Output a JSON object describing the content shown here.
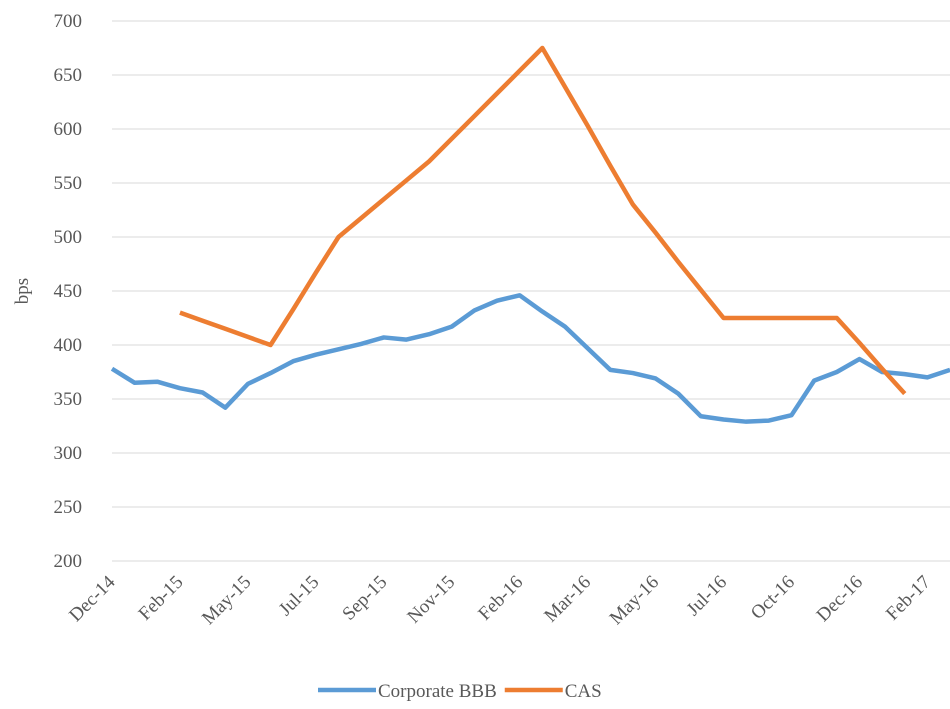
{
  "chart_data": {
    "type": "line",
    "y_label": "bps",
    "categories": [
      "Dec-14",
      null,
      null,
      "Feb-15",
      null,
      null,
      "May-15",
      null,
      null,
      "Jul-15",
      null,
      null,
      "Sep-15",
      null,
      null,
      "Nov-15",
      null,
      null,
      "Feb-16",
      null,
      null,
      "Mar-16",
      null,
      null,
      "May-16",
      null,
      null,
      "Jul-16",
      null,
      null,
      "Oct-16",
      null,
      null,
      "Dec-16",
      null,
      null,
      "Feb-17",
      null
    ],
    "series": [
      {
        "name": "Corporate BBB",
        "color": "#5b9bd5",
        "values": [
          378,
          365,
          366,
          360,
          356,
          342,
          364,
          374,
          385,
          391,
          396,
          401,
          407,
          405,
          410,
          417,
          432,
          441,
          446,
          431,
          417,
          397,
          377,
          374,
          369,
          355,
          334,
          331,
          329,
          330,
          335,
          367,
          375,
          387,
          375,
          373,
          370,
          377
        ]
      },
      {
        "name": "CAS",
        "color": "#ed7d31",
        "values": [
          null,
          null,
          null,
          430,
          422.5,
          415,
          407.5,
          400,
          433,
          467,
          500,
          517.5,
          535,
          552.5,
          570,
          591,
          612,
          633,
          654,
          675,
          639,
          603,
          566,
          530,
          504,
          477,
          451,
          425,
          425,
          425,
          425,
          425,
          425,
          402,
          378,
          355,
          null,
          null
        ]
      }
    ],
    "ylim": [
      200,
      700
    ],
    "yticks": [
      200,
      250,
      300,
      350,
      400,
      450,
      500,
      550,
      600,
      650,
      700
    ],
    "grid": true
  }
}
